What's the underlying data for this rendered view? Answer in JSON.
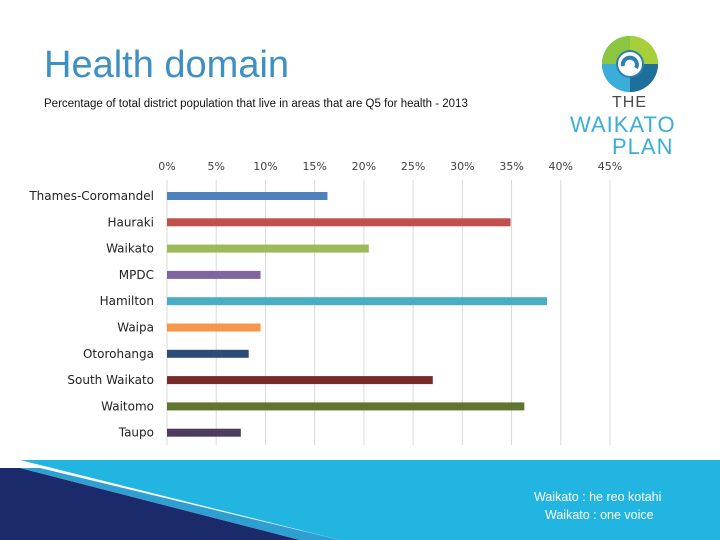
{
  "slide": {
    "title": "Health domain",
    "subtitle": "Percentage of total district population that live in areas that are Q5 for health - 2013"
  },
  "logo": {
    "line1": "THE",
    "line2": "WAIKATO",
    "line3": "PLAN"
  },
  "footer": {
    "line1": "Waikato : he reo kotahi",
    "line2": "Waikato : one voice"
  },
  "colors": {
    "title": "#3d8fc4",
    "footer_dark": "#1b2a6b",
    "footer_light": "#22b5e2"
  },
  "chart_data": {
    "type": "bar",
    "orientation": "horizontal",
    "title": "",
    "xlabel": "",
    "ylabel": "",
    "xlim": [
      0,
      45
    ],
    "x_ticks": [
      "0%",
      "5%",
      "10%",
      "15%",
      "20%",
      "25%",
      "30%",
      "35%",
      "40%",
      "45%"
    ],
    "grid": true,
    "legend": "none",
    "categories": [
      "Thames-Coromandel",
      "Hauraki",
      "Waikato",
      "MPDC",
      "Hamilton",
      "Waipa",
      "Otorohanga",
      "South Waikato",
      "Waitomo",
      "Taupo"
    ],
    "values": [
      16.3,
      34.9,
      20.5,
      9.5,
      38.6,
      9.5,
      8.3,
      27.0,
      36.3,
      7.5
    ],
    "bar_colors": [
      "#4f81bd",
      "#c0504d",
      "#9bbb59",
      "#8064a2",
      "#4bacc6",
      "#f79646",
      "#2c4d75",
      "#772c2a",
      "#5f7530",
      "#4d3b62"
    ]
  }
}
